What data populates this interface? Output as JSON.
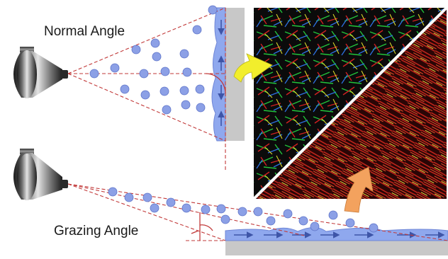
{
  "labels": {
    "normal_angle": "Normal Angle",
    "grazing_angle": "Grazing Angle"
  },
  "colors": {
    "droplet": "#8ca0e6",
    "droplet_stroke": "#5d73c8",
    "film": "#8fa8ee",
    "film_arrow": "#3e55a8",
    "surface": "#c8c8c8",
    "guide_line": "#c23a3a",
    "arrow_top": "#f2ee2c",
    "arrow_bottom": "#f3a25e",
    "micrograph_bg": "#0b0b0b",
    "micrograph_divider": "#ffffff"
  },
  "icons": {
    "nozzle_top": "spray-nozzle-icon",
    "nozzle_bottom": "spray-nozzle-icon"
  }
}
